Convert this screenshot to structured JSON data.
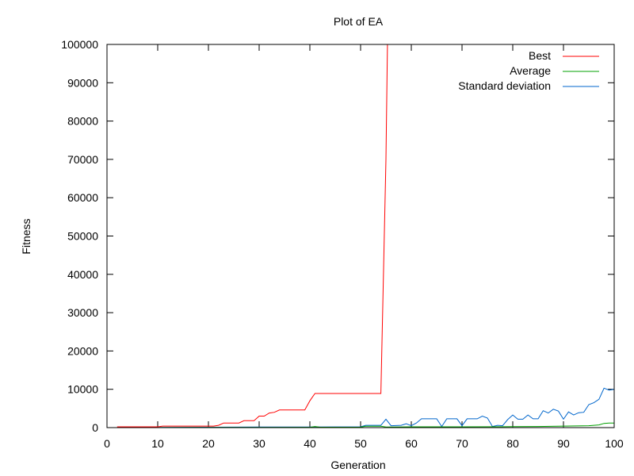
{
  "chart_data": {
    "type": "line",
    "title": "Plot of EA",
    "xlabel": "Generation",
    "ylabel": "Fitness",
    "xlim": [
      0,
      100
    ],
    "ylim": [
      0,
      100000
    ],
    "xticks": [
      "0",
      "10",
      "20",
      "30",
      "40",
      "50",
      "60",
      "70",
      "80",
      "90",
      "100"
    ],
    "yticks": [
      "0",
      "10000",
      "20000",
      "30000",
      "40000",
      "50000",
      "60000",
      "70000",
      "80000",
      "90000",
      "100000"
    ],
    "grid": false,
    "legend_position": "top-right",
    "series": [
      {
        "name": "Best",
        "color": "#ff0000",
        "x": [
          2,
          10,
          11,
          21,
          22,
          23,
          26,
          27,
          29,
          30,
          31,
          32,
          33,
          34,
          35,
          39,
          40,
          41,
          42,
          54,
          55,
          55.3
        ],
        "y": [
          200,
          200,
          400,
          400,
          600,
          1200,
          1200,
          1800,
          1800,
          3000,
          3000,
          3800,
          4000,
          4600,
          4600,
          4600,
          7000,
          8900,
          8900,
          8900,
          70000,
          100000
        ]
      },
      {
        "name": "Average",
        "color": "#00a000",
        "x": [
          2,
          10,
          20,
          30,
          40,
          41,
          42,
          50,
          51,
          54,
          55,
          60,
          70,
          80,
          85,
          90,
          95,
          97,
          98,
          99,
          100
        ],
        "y": [
          0,
          20,
          40,
          60,
          80,
          300,
          100,
          120,
          350,
          350,
          150,
          200,
          200,
          250,
          300,
          400,
          500,
          700,
          1100,
          1200,
          1200
        ],
        "comment_unused": null
      },
      {
        "name": "Standard deviation",
        "color": "#0066cc",
        "x": [
          2,
          10,
          20,
          30,
          40,
          50,
          51,
          54,
          55,
          56,
          58,
          59,
          60,
          61,
          62,
          65,
          66,
          67,
          69,
          70,
          71,
          73,
          74,
          75,
          76,
          77,
          78,
          79,
          80,
          81,
          82,
          83,
          84,
          85,
          86,
          87,
          88,
          89,
          90,
          91,
          92,
          93,
          94,
          95,
          96,
          97,
          98,
          99,
          100
        ],
        "y": [
          0,
          50,
          100,
          150,
          150,
          200,
          600,
          600,
          2200,
          500,
          600,
          1000,
          500,
          1200,
          2300,
          2300,
          300,
          2300,
          2300,
          500,
          2300,
          2300,
          3000,
          2500,
          300,
          600,
          500,
          2100,
          3300,
          2200,
          2200,
          3300,
          2300,
          2300,
          4400,
          3800,
          4800,
          4300,
          2200,
          4100,
          3300,
          3900,
          4000,
          6000,
          6500,
          7400,
          10300,
          9800,
          10000
        ]
      }
    ]
  }
}
